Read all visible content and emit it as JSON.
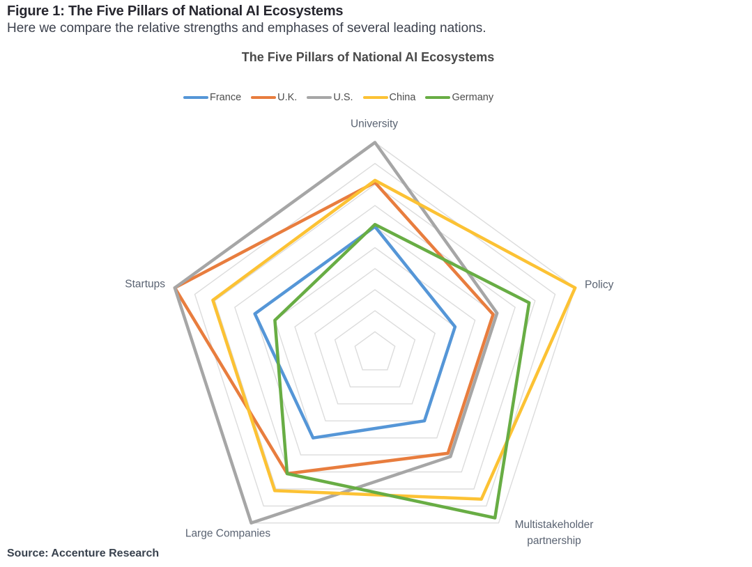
{
  "figure": {
    "title": "Figure 1: The Five Pillars of National AI Ecosystems",
    "subtitle": "Here we compare the relative strengths and emphases of several leading nations.",
    "source": "Source: Accenture Research"
  },
  "chart_data": {
    "type": "radar",
    "title": "The Five Pillars of National AI Ecosystems",
    "categories": [
      "University",
      "Policy",
      "Multistakeholder partnership",
      "Large Companies",
      "Startups"
    ],
    "scale": {
      "min": 0,
      "max": 10,
      "rings": 10,
      "grid_shape": "pentagon",
      "spokes": false
    },
    "grid_color": "#DCDCDC",
    "legend_position": "top",
    "series": [
      {
        "name": "France",
        "color": "#5596D7",
        "values": [
          6.0,
          4.0,
          4.0,
          5.0,
          6.0
        ]
      },
      {
        "name": "U.K.",
        "color": "#E87D3E",
        "values": [
          8.1,
          5.9,
          5.9,
          7.1,
          10.0
        ]
      },
      {
        "name": "U.S.",
        "color": "#A6A6A6",
        "values": [
          10.0,
          6.1,
          6.1,
          10.0,
          10.0
        ]
      },
      {
        "name": "China",
        "color": "#FCC234",
        "values": [
          8.2,
          10.0,
          8.6,
          8.1,
          8.1
        ]
      },
      {
        "name": "Germany",
        "color": "#68AD44",
        "values": [
          6.1,
          7.7,
          9.7,
          7.1,
          5.0
        ]
      }
    ]
  }
}
